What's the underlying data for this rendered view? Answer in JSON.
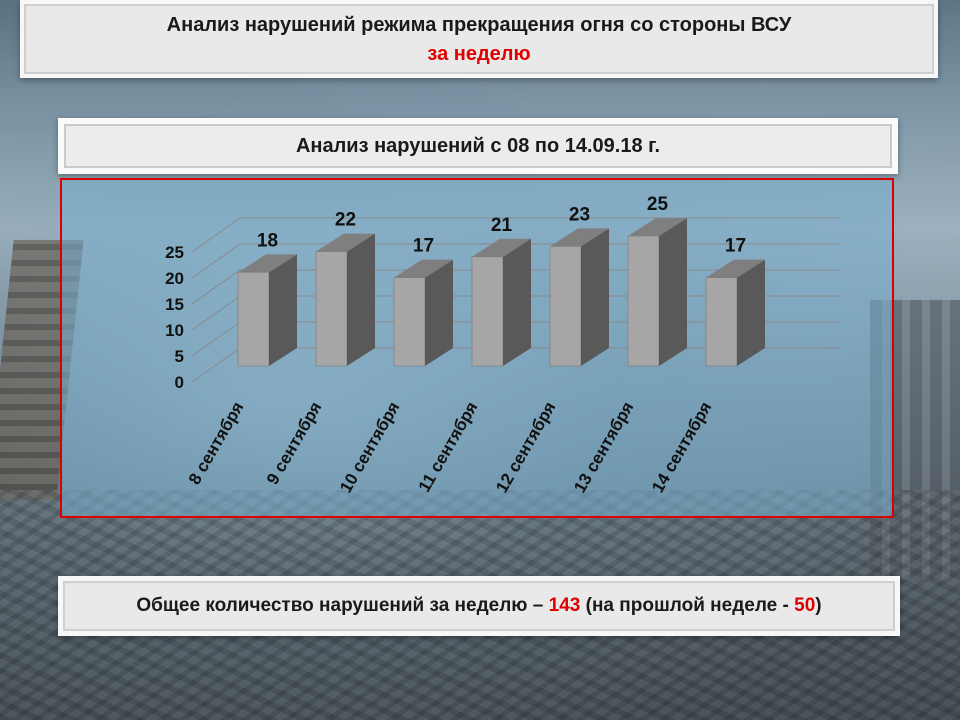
{
  "header": {
    "title": "Анализ нарушений режима прекращения огня со стороны ВСУ",
    "subtitle": "за неделю"
  },
  "subheader": {
    "title": "Анализ нарушений с 08 по 14.09.18 г."
  },
  "chart_data": {
    "type": "bar",
    "style": "3d-column",
    "categories": [
      "8 сентября",
      "9 сентября",
      "10 сентября",
      "11 сентября",
      "12 сентября",
      "13 сентября",
      "14 сентября"
    ],
    "values": [
      18,
      22,
      17,
      21,
      23,
      25,
      17
    ],
    "y_ticks": [
      "0",
      "5",
      "10",
      "15",
      "20",
      "25"
    ],
    "ylim": [
      0,
      25
    ],
    "grid": true,
    "legend": "none",
    "data_labels": true,
    "colors": {
      "bar": "#a6a6a6",
      "bar_side": "#595959",
      "bar_top": "#7f7f7f",
      "grid": "#8a8a8a"
    }
  },
  "footer": {
    "prefix": "Общее количество нарушений за неделю – ",
    "total": "143",
    "middle": " (на прошлой неделе - ",
    "previous": "50",
    "suffix": ")"
  },
  "colors": {
    "accent": "#e00000",
    "chart_border": "#d80000"
  }
}
